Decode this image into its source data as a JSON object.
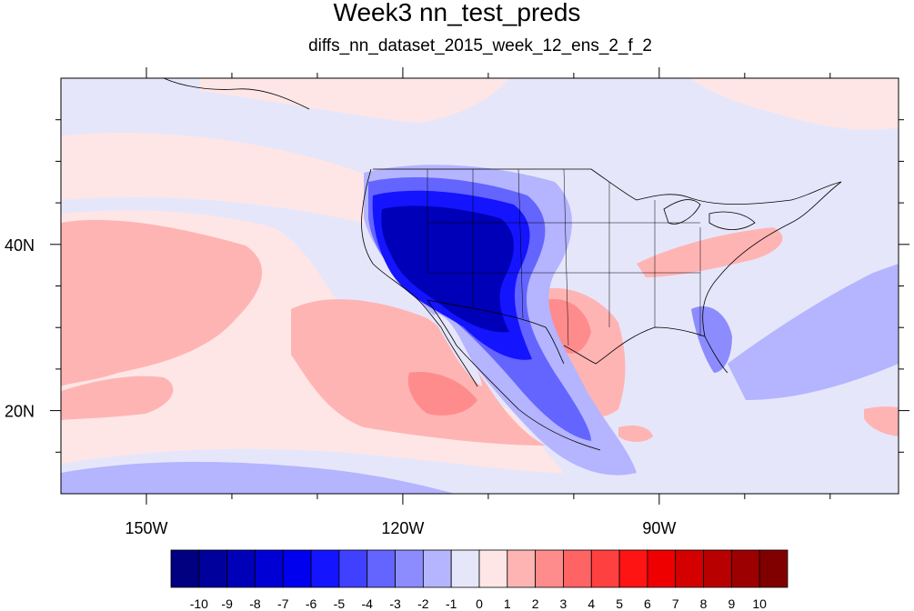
{
  "title": "Week3 nn_test_preds",
  "subtitle": "diffs_nn_dataset_2015_week_12_ens_2_f_2",
  "map": {
    "lon_range": [
      -160,
      -62
    ],
    "lat_range": [
      10,
      60
    ],
    "lon_ticks": [
      {
        "value": -150,
        "label": "150W"
      },
      {
        "value": -120,
        "label": "120W"
      },
      {
        "value": -90,
        "label": "90W"
      }
    ],
    "lat_ticks": [
      {
        "value": 40,
        "label": "40N"
      },
      {
        "value": 20,
        "label": "20N"
      }
    ]
  },
  "colorbar": {
    "labels": [
      "-10",
      "-9",
      "-8",
      "-7",
      "-6",
      "-5",
      "-4",
      "-3",
      "-2",
      "-1",
      "0",
      "1",
      "2",
      "3",
      "4",
      "5",
      "6",
      "7",
      "8",
      "9",
      "10"
    ],
    "colors": [
      "#000080",
      "#00009c",
      "#0000b8",
      "#0000d4",
      "#0000ee",
      "#1414ff",
      "#4040ff",
      "#6464ff",
      "#8c8cff",
      "#b4b4ff",
      "#e6e6fa",
      "#ffe6e6",
      "#ffb4b4",
      "#ff8c8c",
      "#ff6464",
      "#ff4040",
      "#ff1414",
      "#ee0000",
      "#d40000",
      "#b80000",
      "#9c0000",
      "#800000"
    ]
  },
  "colors": {
    "background": "#e6e6fa",
    "neutral_pos": "#ffe6e6",
    "light_pos": "#ffb4b4",
    "mid_pos": "#ff8c8c",
    "light_neg": "#b4b4ff",
    "mid_neg": "#8c8cff",
    "strong_neg": "#1414ff",
    "deep_neg": "#0000b8"
  }
}
